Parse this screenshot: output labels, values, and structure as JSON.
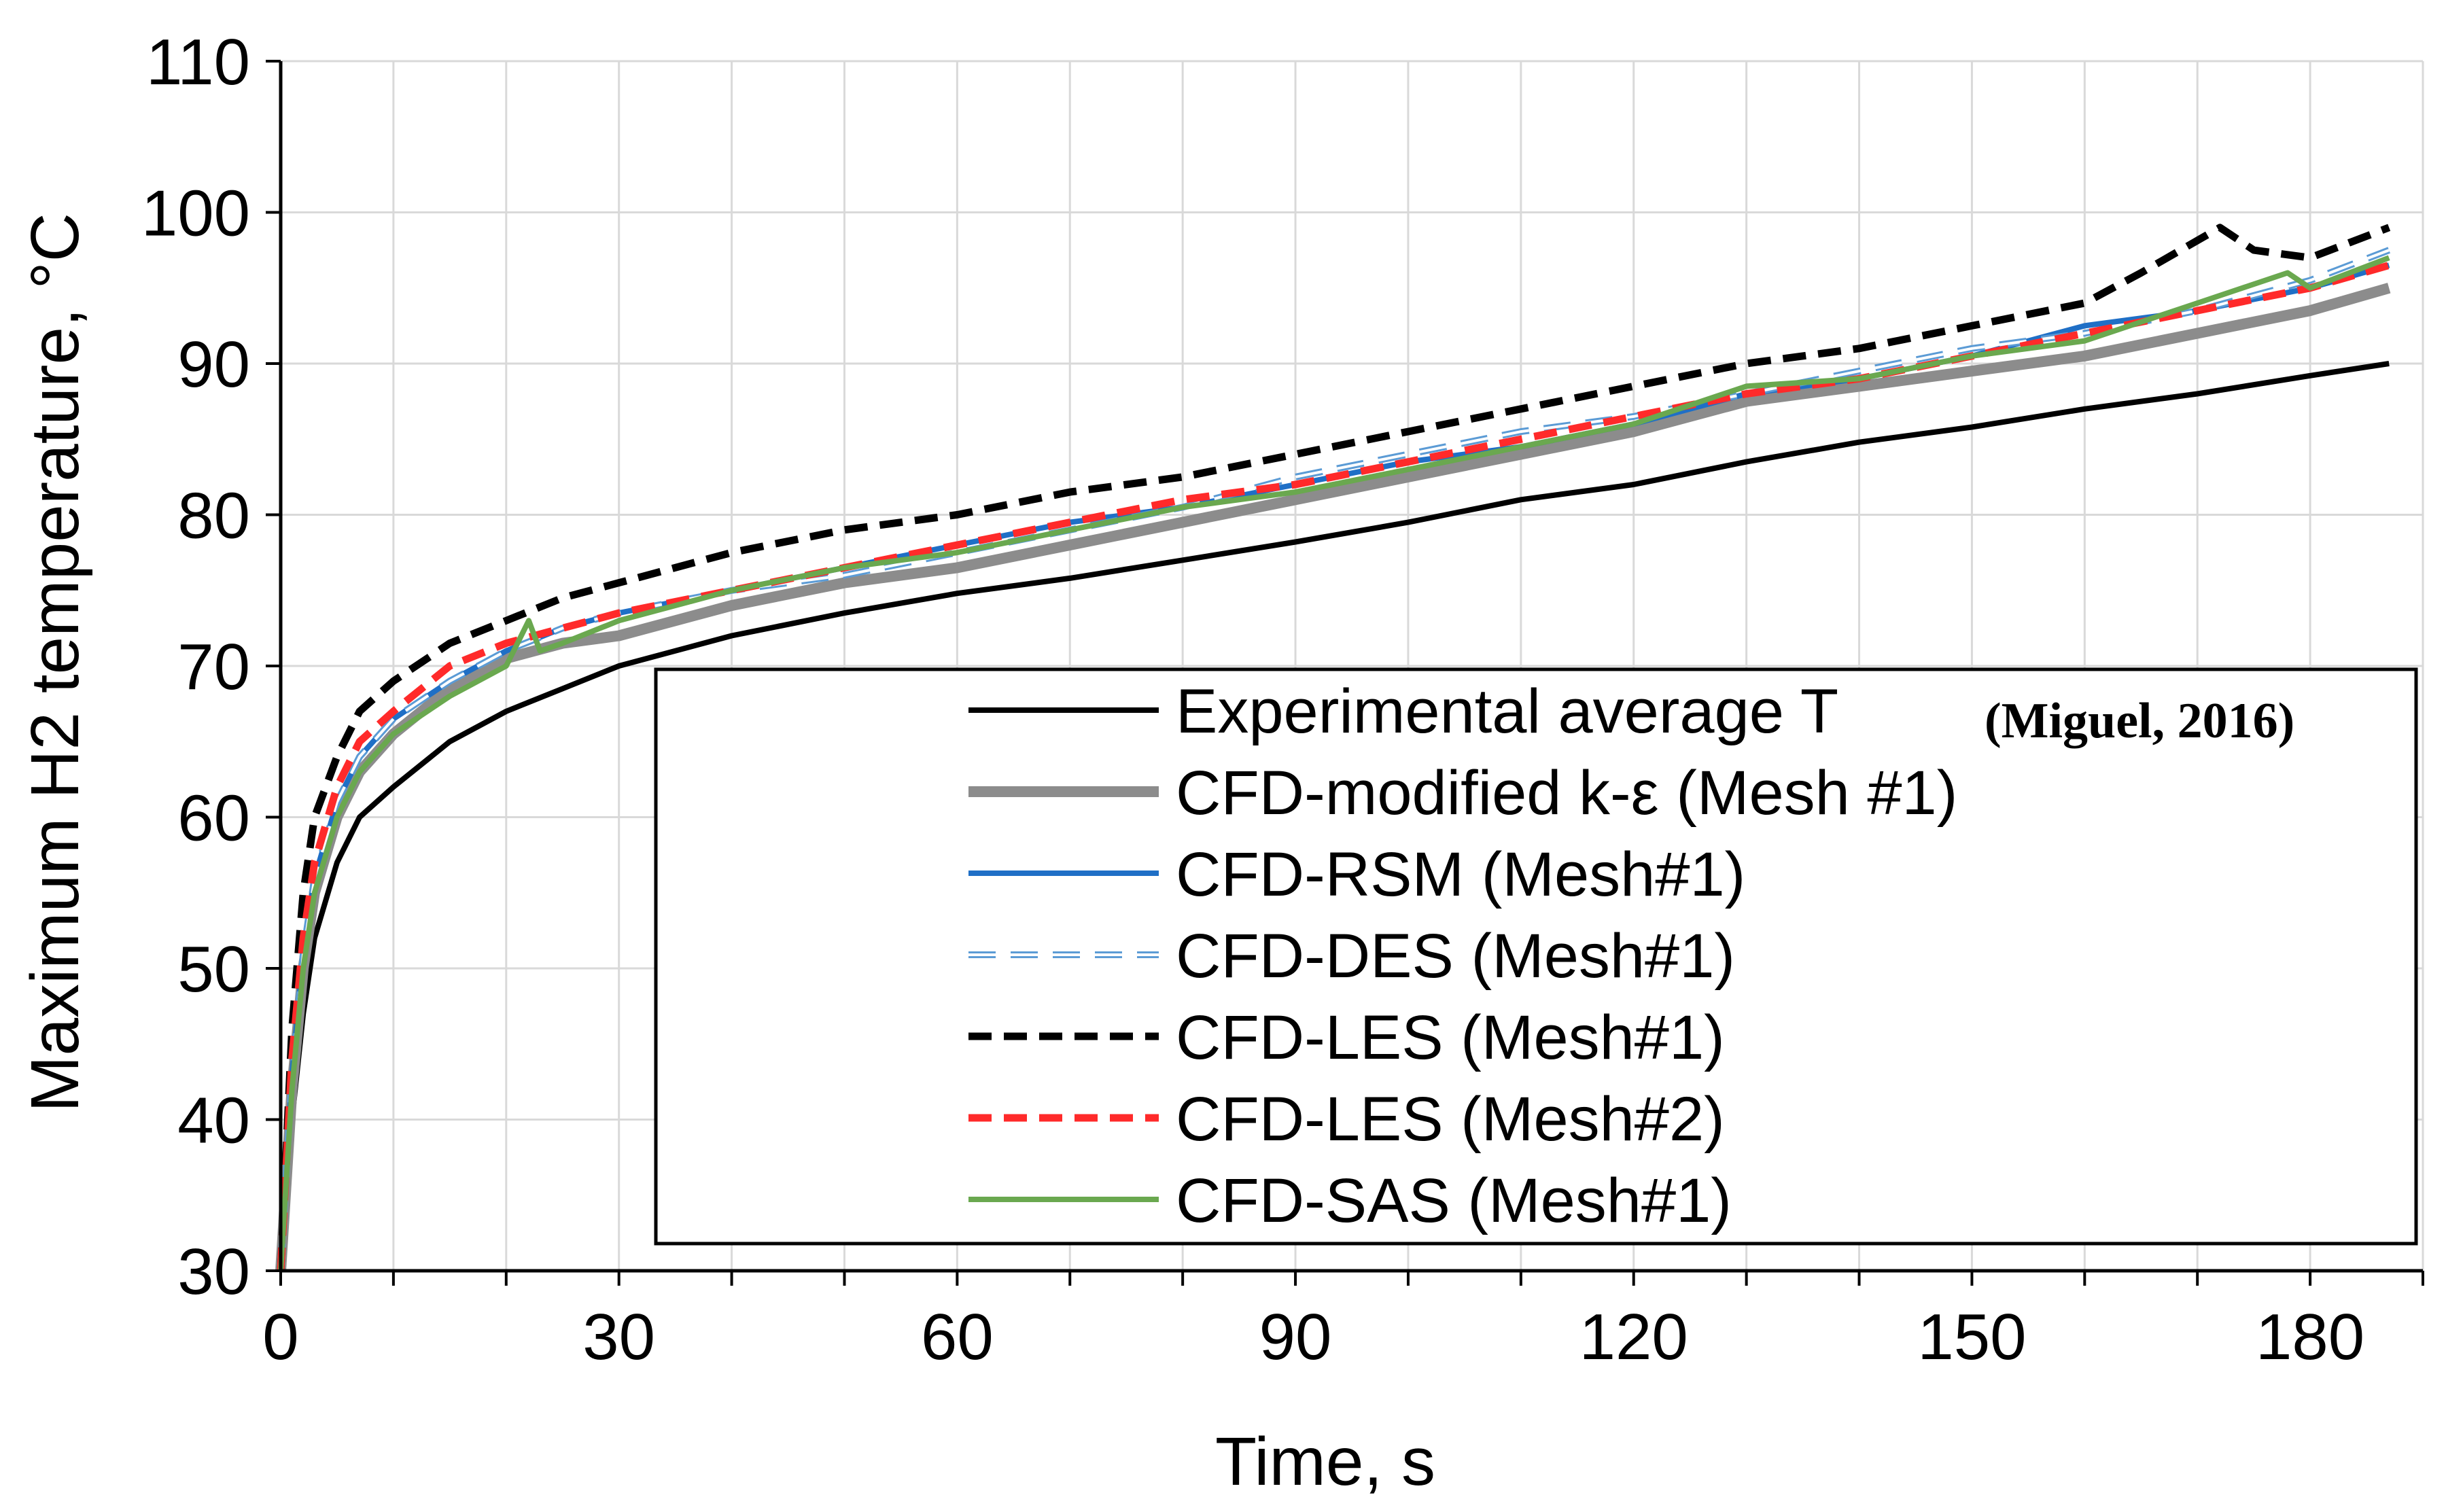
{
  "chart_data": {
    "type": "line",
    "title": "",
    "xlabel": "Time, s",
    "ylabel": "Maximum H2 temperature, °C",
    "xlim": [
      0,
      190
    ],
    "ylim": [
      30,
      110
    ],
    "xticks": [
      0,
      30,
      60,
      90,
      120,
      150,
      180
    ],
    "yticks": [
      30,
      40,
      50,
      60,
      70,
      80,
      90,
      100,
      110
    ],
    "x_gridlines": [
      0,
      10,
      20,
      30,
      40,
      50,
      60,
      70,
      80,
      90,
      100,
      110,
      120,
      130,
      140,
      150,
      160,
      170,
      180,
      190
    ],
    "grid": true,
    "legend_position": "bottom-right",
    "legend_citation": "(Miguel, 2016)",
    "series": [
      {
        "name": "Experimental average T",
        "color": "#000000",
        "style": "solid",
        "x": [
          0,
          1,
          2,
          3,
          5,
          7,
          10,
          15,
          20,
          25,
          30,
          40,
          50,
          60,
          70,
          80,
          90,
          100,
          110,
          120,
          130,
          140,
          150,
          160,
          170,
          180,
          187
        ],
        "y": [
          30,
          40,
          47,
          52,
          57,
          60,
          62,
          65,
          67,
          68.5,
          70,
          72,
          73.5,
          74.8,
          75.8,
          77,
          78.2,
          79.5,
          81,
          82,
          83.5,
          84.8,
          85.8,
          87,
          88,
          89.2,
          90
        ]
      },
      {
        "name": "CFD-modified k-ε (Mesh #1)",
        "color": "#8c8c8c",
        "style": "solid-thick",
        "x": [
          0,
          1,
          2,
          3,
          5,
          7,
          10,
          15,
          20,
          25,
          30,
          40,
          50,
          60,
          70,
          80,
          90,
          100,
          110,
          120,
          130,
          140,
          150,
          160,
          170,
          180,
          187
        ],
        "y": [
          30,
          42,
          50,
          55,
          60,
          63,
          65.5,
          68.5,
          70.5,
          71.5,
          72,
          74,
          75.5,
          76.5,
          78,
          79.5,
          81,
          82.5,
          84,
          85.5,
          87.5,
          88.5,
          89.5,
          90.5,
          92,
          93.5,
          95
        ]
      },
      {
        "name": "CFD-RSM (Mesh#1)",
        "color": "#1f6fc6",
        "style": "solid",
        "x": [
          0,
          1,
          2,
          3,
          5,
          7,
          10,
          15,
          20,
          25,
          30,
          40,
          50,
          60,
          70,
          80,
          90,
          100,
          110,
          120,
          130,
          140,
          150,
          160,
          170,
          180,
          187
        ],
        "y": [
          30,
          43,
          51,
          56,
          61,
          64,
          66.5,
          69,
          71,
          72.5,
          73.5,
          75,
          76.5,
          78,
          79.5,
          80.5,
          82,
          83.5,
          84.5,
          86,
          88,
          89,
          90.5,
          92.5,
          93.5,
          95,
          96.5
        ]
      },
      {
        "name": "CFD-DES (Mesh#1)",
        "color": "#5b9bd5",
        "style": "hollow-dash",
        "x": [
          0,
          1,
          2,
          3,
          5,
          7,
          10,
          15,
          20,
          25,
          30,
          40,
          50,
          60,
          70,
          80,
          90,
          100,
          110,
          120,
          130,
          140,
          150,
          160,
          170,
          180,
          187
        ],
        "y": [
          30,
          43,
          51,
          56,
          61,
          64,
          66.5,
          69,
          71,
          72.5,
          73.5,
          75,
          76,
          77.5,
          79,
          80.5,
          82.5,
          84,
          85.5,
          86.5,
          88,
          89.5,
          91,
          92,
          93.5,
          95.5,
          97.5
        ]
      },
      {
        "name": "CFD-LES (Mesh#1)",
        "color": "#000000",
        "style": "dashed",
        "x": [
          0,
          1,
          2,
          3,
          5,
          7,
          10,
          15,
          20,
          25,
          30,
          40,
          50,
          60,
          70,
          80,
          90,
          100,
          110,
          120,
          130,
          140,
          150,
          160,
          165,
          172,
          175,
          180,
          187
        ],
        "y": [
          30,
          46,
          55,
          60,
          64,
          67,
          69,
          71.5,
          73,
          74.5,
          75.5,
          77.5,
          79,
          80,
          81.5,
          82.5,
          84,
          85.5,
          87,
          88.5,
          90,
          91,
          92.5,
          94,
          96,
          99,
          97.5,
          97,
          99
        ]
      },
      {
        "name": "CFD-LES (Mesh#2)",
        "color": "#ff2a2a",
        "style": "dashed",
        "x": [
          0,
          1,
          2,
          3,
          5,
          7,
          10,
          15,
          20,
          25,
          30,
          40,
          50,
          60,
          70,
          80,
          90,
          100,
          110,
          120,
          130,
          140,
          150,
          160,
          170,
          180,
          187
        ],
        "y": [
          30,
          44,
          52,
          57,
          62,
          65,
          67,
          70,
          71.5,
          72.5,
          73.5,
          75,
          76.5,
          78,
          79.5,
          81,
          82,
          83.5,
          85,
          86.5,
          88,
          89,
          90.5,
          92,
          93.5,
          95,
          96.5
        ]
      },
      {
        "name": "CFD-SAS (Mesh#1)",
        "color": "#6aa84f",
        "style": "solid",
        "x": [
          0,
          1,
          2,
          3,
          5,
          7,
          10,
          15,
          20,
          22,
          23,
          25,
          30,
          40,
          50,
          60,
          70,
          80,
          90,
          100,
          110,
          120,
          130,
          140,
          150,
          160,
          170,
          178,
          180,
          187
        ],
        "y": [
          30,
          42,
          50,
          55,
          60,
          63,
          65.5,
          68,
          70,
          73,
          71,
          71.5,
          73,
          75,
          76.5,
          77.5,
          79,
          80.5,
          81.5,
          83,
          84.5,
          86,
          88.5,
          89,
          90.5,
          91.5,
          94,
          96,
          95,
          97
        ]
      }
    ]
  }
}
